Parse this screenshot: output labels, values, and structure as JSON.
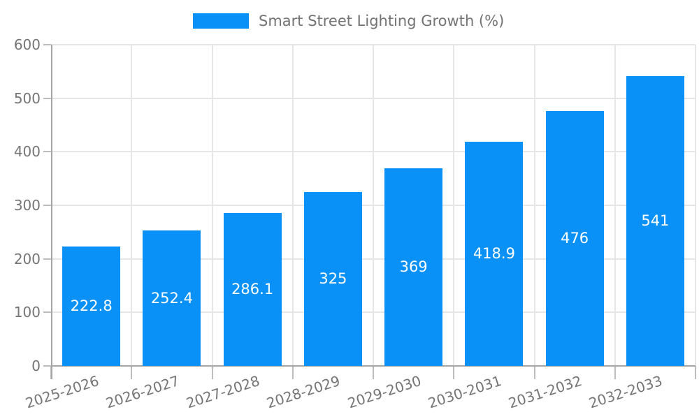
{
  "legend": {
    "label": "Smart Street Lighting Growth (%)"
  },
  "chart_data": {
    "type": "bar",
    "title": "",
    "legend_entries": [
      "Smart Street Lighting Growth (%)"
    ],
    "legend_position": "top-center",
    "categories": [
      "2025-2026",
      "2026-2027",
      "2027-2028",
      "2028-2029",
      "2029-2030",
      "2030-2031",
      "2031-2032",
      "2032-2033"
    ],
    "series": [
      {
        "name": "Smart Street Lighting Growth (%)",
        "values": [
          222.8,
          252.4,
          286.1,
          325,
          369,
          418.9,
          476,
          541
        ],
        "value_labels": [
          "222.8",
          "252.4",
          "286.1",
          "325",
          "369",
          "418.9",
          "476",
          "541"
        ],
        "color": "#0991f8"
      }
    ],
    "xlabel": "",
    "ylabel": "",
    "ylim": [
      0,
      600
    ],
    "yticks": [
      0,
      100,
      200,
      300,
      400,
      500,
      600
    ],
    "grid": true,
    "x_label_rotation_deg": -18,
    "colors": {
      "bar": "#0991f8",
      "grid": "#e6e6e6",
      "axis": "#a6a6a6",
      "tick": "#bdbdbd",
      "tick_label": "#757575",
      "value_label": "#ffffff"
    }
  }
}
